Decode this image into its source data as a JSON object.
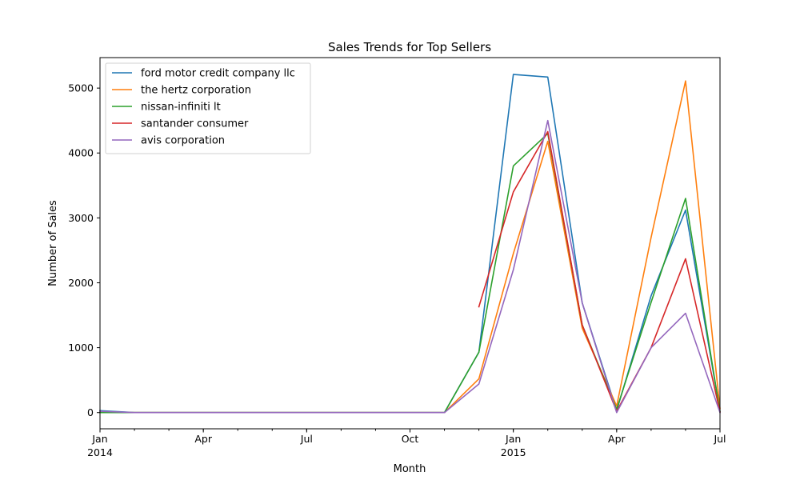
{
  "chart_data": {
    "type": "line",
    "title": "Sales Trends for Top Sellers",
    "xlabel": "Month",
    "ylabel": "Number of Sales",
    "x": [
      "2014-01",
      "2014-02",
      "2014-03",
      "2014-04",
      "2014-05",
      "2014-06",
      "2014-07",
      "2014-08",
      "2014-09",
      "2014-10",
      "2014-11",
      "2014-12",
      "2015-01",
      "2015-02",
      "2015-03",
      "2015-04",
      "2015-05",
      "2015-06",
      "2015-07"
    ],
    "xlim": [
      "2014-01",
      "2015-07"
    ],
    "ylim": [
      -250,
      5470
    ],
    "yticks": [
      0,
      1000,
      2000,
      3000,
      4000,
      5000
    ],
    "xticks": [
      {
        "x": "2014-01",
        "label": "Jan",
        "sublabel": "2014"
      },
      {
        "x": "2014-04",
        "label": "Apr",
        "sublabel": ""
      },
      {
        "x": "2014-07",
        "label": "Jul",
        "sublabel": ""
      },
      {
        "x": "2014-10",
        "label": "Oct",
        "sublabel": ""
      },
      {
        "x": "2015-01",
        "label": "Jan",
        "sublabel": "2015"
      },
      {
        "x": "2015-04",
        "label": "Apr",
        "sublabel": ""
      },
      {
        "x": "2015-07",
        "label": "Jul",
        "sublabel": ""
      }
    ],
    "legend_position": "top-left",
    "grid": false,
    "series": [
      {
        "name": "ford motor credit company llc",
        "color": "#1f77b4",
        "values": [
          30,
          0,
          0,
          0,
          0,
          0,
          0,
          0,
          0,
          0,
          0,
          930,
          5210,
          5170,
          1690,
          30,
          1800,
          3120,
          20
        ]
      },
      {
        "name": "the hertz corporation",
        "color": "#ff7f0e",
        "values": [
          0,
          0,
          0,
          0,
          0,
          0,
          0,
          0,
          0,
          0,
          0,
          520,
          2450,
          4180,
          1300,
          100,
          2700,
          5110,
          60
        ]
      },
      {
        "name": "nissan-infiniti lt",
        "color": "#2ca02c",
        "values": [
          0,
          0,
          0,
          0,
          0,
          0,
          0,
          0,
          0,
          0,
          0,
          930,
          3800,
          4300,
          1350,
          50,
          1700,
          3300,
          10
        ]
      },
      {
        "name": "santander consumer",
        "color": "#d62728",
        "values": [
          null,
          null,
          null,
          null,
          null,
          null,
          null,
          null,
          null,
          null,
          null,
          1630,
          3400,
          4330,
          1350,
          20,
          1000,
          2370,
          10
        ]
      },
      {
        "name": "avis corporation",
        "color": "#9467bd",
        "values": [
          20,
          0,
          0,
          0,
          0,
          0,
          0,
          0,
          0,
          0,
          0,
          440,
          2200,
          4500,
          1690,
          0,
          1000,
          1530,
          0
        ]
      }
    ]
  }
}
